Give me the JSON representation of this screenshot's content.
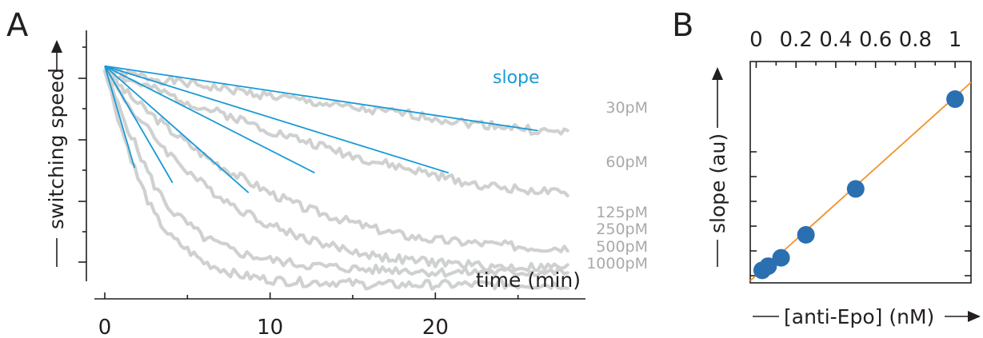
{
  "panels": {
    "a_label": "A",
    "b_label": "B"
  },
  "colors": {
    "traces": "#cfd1d1",
    "fit_lines": "#1a9ad6",
    "calibration_line": "#f0922b",
    "points": "#2a6fb0",
    "axes": "#231f20",
    "series_labels": "#a7a9ac"
  },
  "chart_data": [
    {
      "type": "line",
      "xlabel": "time (min)",
      "ylabel": "switching speed",
      "xlim": [
        0,
        28.5
      ],
      "ylim": [
        0.1,
        1.2
      ],
      "xticks": [
        0,
        10,
        20
      ],
      "xtick_labels": [
        "0",
        "10",
        "20"
      ],
      "y_tick_count": 3,
      "y_tick_labels_shown": false,
      "grid": false,
      "annotation": "slope",
      "series": [
        {
          "name": "30pM",
          "end_value": 0.78,
          "noise": 0.018,
          "seed": 1,
          "x": [
            0,
            2,
            4,
            6,
            8,
            10,
            12,
            14,
            16,
            18,
            20,
            22,
            24,
            26,
            28
          ],
          "y": [
            1.03,
            1.01,
            0.99,
            0.97,
            0.95,
            0.93,
            0.91,
            0.89,
            0.87,
            0.86,
            0.84,
            0.82,
            0.81,
            0.79,
            0.78
          ]
        },
        {
          "name": "60pM",
          "end_value": 0.53,
          "noise": 0.018,
          "seed": 2,
          "x": [
            0,
            2,
            4,
            6,
            8,
            10,
            12,
            14,
            16,
            18,
            20,
            22,
            24,
            26,
            28
          ],
          "y": [
            1.03,
            0.98,
            0.93,
            0.88,
            0.84,
            0.79,
            0.75,
            0.71,
            0.67,
            0.64,
            0.61,
            0.58,
            0.56,
            0.55,
            0.53
          ]
        },
        {
          "name": "125pM",
          "end_value": 0.32,
          "noise": 0.018,
          "seed": 3,
          "x": [
            0,
            2,
            4,
            6,
            8,
            10,
            12,
            14,
            16,
            18,
            20,
            22,
            24,
            26,
            28
          ],
          "y": [
            1.03,
            0.9,
            0.79,
            0.69,
            0.61,
            0.54,
            0.48,
            0.44,
            0.4,
            0.37,
            0.35,
            0.34,
            0.33,
            0.32,
            0.32
          ]
        },
        {
          "name": "250pM",
          "end_value": 0.24,
          "noise": 0.018,
          "seed": 4,
          "x": [
            0,
            2,
            4,
            6,
            8,
            10,
            12,
            14,
            16,
            18,
            20,
            22,
            24,
            26,
            28
          ],
          "y": [
            1.03,
            0.84,
            0.69,
            0.57,
            0.48,
            0.41,
            0.36,
            0.32,
            0.29,
            0.27,
            0.26,
            0.25,
            0.24,
            0.24,
            0.24
          ]
        },
        {
          "name": "500pM",
          "end_value": 0.22,
          "noise": 0.018,
          "seed": 5,
          "x": [
            0,
            1,
            2,
            3,
            4,
            6,
            8,
            10,
            12,
            14,
            16,
            18,
            20,
            24,
            28
          ],
          "y": [
            1.03,
            0.86,
            0.71,
            0.57,
            0.47,
            0.36,
            0.3,
            0.27,
            0.25,
            0.24,
            0.23,
            0.23,
            0.22,
            0.22,
            0.22
          ]
        },
        {
          "name": "1000pM",
          "end_value": 0.17,
          "noise": 0.018,
          "seed": 6,
          "x": [
            0,
            1,
            2,
            3,
            4,
            6,
            8,
            10,
            12,
            14,
            16,
            18,
            20,
            24,
            28
          ],
          "y": [
            1.03,
            0.8,
            0.6,
            0.45,
            0.36,
            0.26,
            0.21,
            0.19,
            0.18,
            0.18,
            0.17,
            0.17,
            0.17,
            0.17,
            0.17
          ]
        }
      ],
      "fit_lines": [
        {
          "series": "30pM",
          "x": [
            0,
            26.2
          ],
          "y": [
            1.05,
            0.79
          ]
        },
        {
          "series": "60pM",
          "x": [
            0,
            20.8
          ],
          "y": [
            1.05,
            0.62
          ]
        },
        {
          "series": "125pM",
          "x": [
            0,
            12.7
          ],
          "y": [
            1.05,
            0.62
          ]
        },
        {
          "series": "250pM",
          "x": [
            0,
            8.7
          ],
          "y": [
            1.05,
            0.54
          ]
        },
        {
          "series": "500pM",
          "x": [
            0,
            4.1
          ],
          "y": [
            1.05,
            0.58
          ]
        },
        {
          "series": "1000pM",
          "x": [
            0,
            1.8
          ],
          "y": [
            1.05,
            0.64
          ]
        }
      ]
    },
    {
      "type": "scatter",
      "xlabel": "[anti-Epo] (nM)",
      "ylabel": "slope (au)",
      "xlim": [
        -0.03,
        1.08
      ],
      "ylim": [
        0,
        1.06
      ],
      "xticks": [
        0,
        0.2,
        0.4,
        0.6,
        0.8,
        1
      ],
      "xtick_labels": [
        "0",
        "0.2",
        "0.4",
        "0.6",
        "0.8",
        "1"
      ],
      "xaxis_position": "top",
      "y_tick_count": 6,
      "y_tick_labels_shown": false,
      "grid": false,
      "points": {
        "x": [
          0.03,
          0.06,
          0.125,
          0.25,
          0.5,
          1.0
        ],
        "y": [
          0.06,
          0.08,
          0.12,
          0.23,
          0.45,
          0.88
        ]
      },
      "fit_line": {
        "x": [
          -0.03,
          1.08
        ],
        "y": [
          0.01,
          0.96
        ]
      }
    }
  ]
}
